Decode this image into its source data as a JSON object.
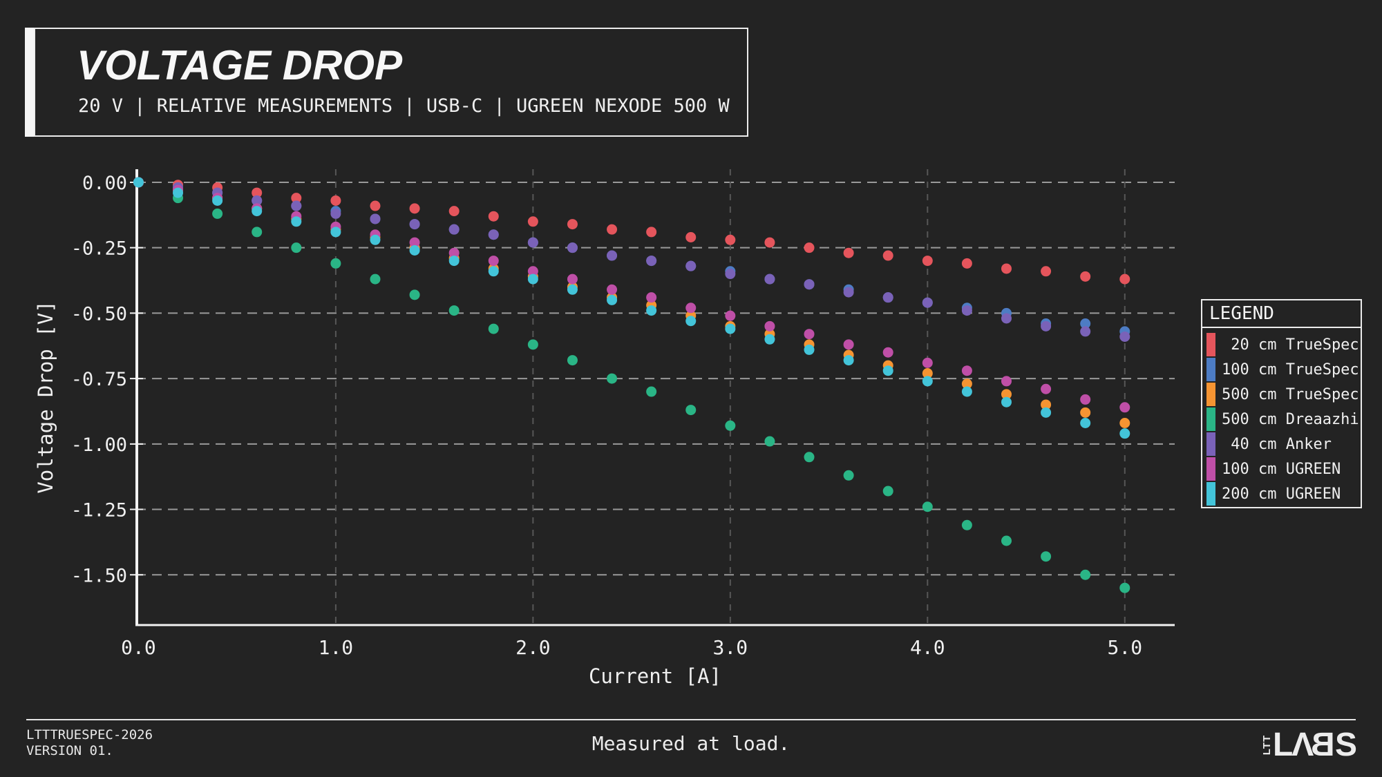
{
  "header": {
    "title": "VOLTAGE DROP",
    "subtitle": "20 V | RELATIVE MEASUREMENTS | USB-C | UGREEN NEXODE 500 W"
  },
  "legend": {
    "title": "LEGEND",
    "items": [
      {
        "label": " 20 cm TrueSpec",
        "color": "#e5555c"
      },
      {
        "label": "100 cm TrueSpec",
        "color": "#4d7cc4"
      },
      {
        "label": "500 cm TrueSpec",
        "color": "#f59432"
      },
      {
        "label": "500 cm Dreaazhi",
        "color": "#2ab586"
      },
      {
        "label": " 40 cm Anker",
        "color": "#7a62b8"
      },
      {
        "label": "100 cm UGREEN",
        "color": "#bf4fa7"
      },
      {
        "label": "200 cm UGREEN",
        "color": "#43c4d9"
      }
    ]
  },
  "footer": {
    "left_line1": "LTTTRUESPEC-2026",
    "left_line2": "VERSION 01.",
    "center_note": "Measured at load.",
    "logo_small": "LTT",
    "logo_main": "LABS"
  },
  "chart_data": {
    "type": "scatter",
    "title": "VOLTAGE DROP",
    "xlabel": "Current [A]",
    "ylabel": "Voltage Drop [V]",
    "x_ticks": [
      "0.0",
      "1.0",
      "2.0",
      "3.0",
      "4.0",
      "5.0"
    ],
    "y_ticks": [
      "0.00",
      "-0.25",
      "-0.50",
      "-0.75",
      "-1.00",
      "-1.25",
      "-1.50"
    ],
    "xlim": [
      -0.012,
      5.253
    ],
    "ylim": [
      -1.692,
      0.05
    ],
    "grid": true,
    "legend_position": "right",
    "x": [
      0.0,
      0.2,
      0.4,
      0.6,
      0.8,
      1.0,
      1.2,
      1.4,
      1.6,
      1.8,
      2.0,
      2.2,
      2.4,
      2.6,
      2.8,
      3.0,
      3.2,
      3.4,
      3.6,
      3.8,
      4.0,
      4.2,
      4.4,
      4.6,
      4.8,
      5.0
    ],
    "series": [
      {
        "name": "20 cm TrueSpec",
        "color": "#e5555c",
        "values": [
          0.0,
          -0.01,
          -0.02,
          -0.04,
          -0.06,
          -0.07,
          -0.09,
          -0.1,
          -0.11,
          -0.13,
          -0.15,
          -0.16,
          -0.18,
          -0.19,
          -0.21,
          -0.22,
          -0.23,
          -0.25,
          -0.27,
          -0.28,
          -0.3,
          -0.31,
          -0.33,
          -0.34,
          -0.36,
          -0.37
        ]
      },
      {
        "name": "100 cm TrueSpec",
        "color": "#4d7cc4",
        "values": [
          0.0,
          -0.02,
          -0.04,
          -0.07,
          -0.09,
          -0.11,
          -0.14,
          -0.16,
          -0.18,
          -0.2,
          -0.23,
          -0.25,
          -0.28,
          -0.3,
          -0.32,
          -0.34,
          -0.37,
          -0.39,
          -0.41,
          -0.44,
          -0.46,
          -0.48,
          -0.5,
          -0.54,
          -0.54,
          -0.57
        ]
      },
      {
        "name": "500 cm TrueSpec",
        "color": "#f59432",
        "values": [
          0.0,
          -0.03,
          -0.06,
          -0.1,
          -0.14,
          -0.18,
          -0.21,
          -0.25,
          -0.29,
          -0.33,
          -0.36,
          -0.4,
          -0.44,
          -0.47,
          -0.51,
          -0.55,
          -0.58,
          -0.62,
          -0.66,
          -0.7,
          -0.73,
          -0.77,
          -0.81,
          -0.85,
          -0.88,
          -0.92
        ]
      },
      {
        "name": "500 cm Dreaazhi",
        "color": "#2ab586",
        "values": [
          0.0,
          -0.06,
          -0.12,
          -0.19,
          -0.25,
          -0.31,
          -0.37,
          -0.43,
          -0.49,
          -0.56,
          -0.62,
          -0.68,
          -0.75,
          -0.8,
          -0.87,
          -0.93,
          -0.99,
          -1.05,
          -1.12,
          -1.18,
          -1.24,
          -1.31,
          -1.37,
          -1.43,
          -1.5,
          -1.55
        ]
      },
      {
        "name": "40 cm Anker",
        "color": "#7a62b8",
        "values": [
          0.0,
          -0.02,
          -0.04,
          -0.07,
          -0.09,
          -0.12,
          -0.14,
          -0.16,
          -0.18,
          -0.2,
          -0.23,
          -0.25,
          -0.28,
          -0.3,
          -0.32,
          -0.35,
          -0.37,
          -0.39,
          -0.42,
          -0.44,
          -0.46,
          -0.49,
          -0.52,
          -0.55,
          -0.57,
          -0.59
        ]
      },
      {
        "name": "100 cm UGREEN",
        "color": "#bf4fa7",
        "values": [
          0.0,
          -0.03,
          -0.06,
          -0.1,
          -0.13,
          -0.17,
          -0.2,
          -0.23,
          -0.27,
          -0.3,
          -0.34,
          -0.37,
          -0.41,
          -0.44,
          -0.48,
          -0.51,
          -0.55,
          -0.58,
          -0.62,
          -0.65,
          -0.69,
          -0.72,
          -0.76,
          -0.79,
          -0.83,
          -0.86
        ]
      },
      {
        "name": "200 cm UGREEN",
        "color": "#43c4d9",
        "values": [
          0.0,
          -0.04,
          -0.07,
          -0.11,
          -0.15,
          -0.19,
          -0.22,
          -0.26,
          -0.3,
          -0.34,
          -0.37,
          -0.41,
          -0.45,
          -0.49,
          -0.53,
          -0.56,
          -0.6,
          -0.64,
          -0.68,
          -0.72,
          -0.76,
          -0.8,
          -0.84,
          -0.88,
          -0.92,
          -0.96
        ]
      }
    ],
    "colors": {
      "background": "#232323",
      "grid_horizontal": "#9a9a9a",
      "grid_vertical": "#575757",
      "axis": "#f2f2f2",
      "text": "#f0f0f0"
    }
  }
}
